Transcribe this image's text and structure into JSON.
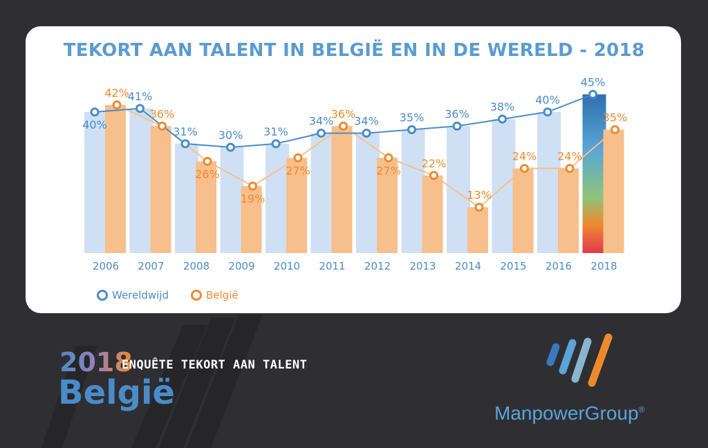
{
  "chart_data": {
    "type": "bar",
    "title": "TEKORT AAN TALENT IN BELGIË EN IN DE WERELD - 2018",
    "categories": [
      "2006",
      "2007",
      "2008",
      "2009",
      "2010",
      "2011",
      "2012",
      "2013",
      "2014",
      "2015",
      "2016",
      "2018"
    ],
    "series": [
      {
        "name": "Wereldwijd",
        "values": [
          40,
          41,
          31,
          30,
          31,
          34,
          34,
          35,
          36,
          38,
          40,
          45
        ],
        "color": "#4a8cc9",
        "bar_color": "#cfe0f4"
      },
      {
        "name": "België",
        "values": [
          42,
          36,
          26,
          19,
          27,
          36,
          27,
          22,
          13,
          24,
          24,
          35
        ],
        "color": "#ee8a2e",
        "bar_color": "#f7bf8c"
      }
    ],
    "value_suffix": "%",
    "ylim": [
      0,
      50
    ],
    "legend_position": "bottom-left",
    "grid": false
  },
  "brand": {
    "year": "2018",
    "subtitle": "ENQUÊTE TEKORT AAN TALENT",
    "country": "België",
    "company": "ManpowerGroup",
    "registered": "®"
  },
  "colors": {
    "background": "#2f2f33",
    "card": "#ffffff",
    "title": "#5b9bd0"
  }
}
